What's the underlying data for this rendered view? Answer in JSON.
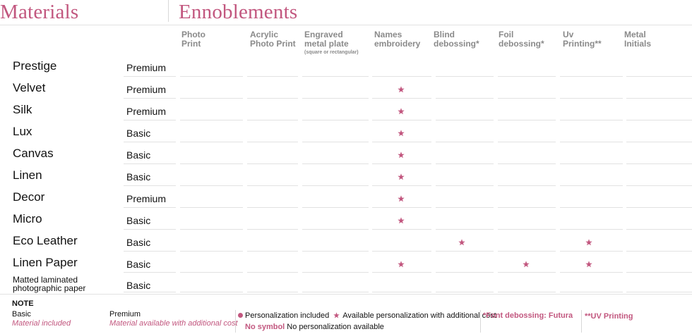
{
  "headings": {
    "materials": "Materials",
    "ennoblements": "Ennoblements"
  },
  "columns": [
    {
      "line1": "Photo",
      "line2": "Print",
      "sub": ""
    },
    {
      "line1": "Acrylic",
      "line2": "Photo Print",
      "sub": ""
    },
    {
      "line1": "Engraved",
      "line2": "metal plate",
      "sub": "(square or rectangular)"
    },
    {
      "line1": "Names",
      "line2": "embroidery",
      "sub": ""
    },
    {
      "line1": "Blind",
      "line2": "debossing*",
      "sub": ""
    },
    {
      "line1": "Foil",
      "line2": "debossing*",
      "sub": ""
    },
    {
      "line1": "Uv",
      "line2": "Printing**",
      "sub": ""
    },
    {
      "line1": "Metal",
      "line2": "Initials",
      "sub": ""
    }
  ],
  "materials": [
    {
      "name": "Prestige",
      "type": "Premium",
      "stars": []
    },
    {
      "name": "Velvet",
      "type": "Premium",
      "stars": [
        3
      ]
    },
    {
      "name": "Silk",
      "type": "Premium",
      "stars": [
        3
      ]
    },
    {
      "name": "Lux",
      "type": "Basic",
      "stars": [
        3
      ]
    },
    {
      "name": "Canvas",
      "type": "Basic",
      "stars": [
        3
      ]
    },
    {
      "name": "Linen",
      "type": "Basic",
      "stars": [
        3
      ]
    },
    {
      "name": "Decor",
      "type": "Premium",
      "stars": [
        3
      ]
    },
    {
      "name": "Micro",
      "type": "Basic",
      "stars": [
        3
      ]
    },
    {
      "name": "Eco Leather",
      "type": "Basic",
      "stars": [
        4,
        6
      ]
    },
    {
      "name": "Linen Paper",
      "type": "Basic",
      "stars": [
        3,
        5,
        6
      ]
    },
    {
      "name": "Matted laminated photographic paper",
      "type": "Basic",
      "stars": []
    }
  ],
  "note": {
    "title": "NOTE",
    "basic_label": "Basic",
    "basic_desc": "Material included",
    "premium_label": "Premium",
    "premium_desc": "Material available with additional cost",
    "included_text": "Personalization included",
    "additional_text": "Available personalization with additional cost",
    "no_symbol_label": "No symbol",
    "no_symbol_text": "No personalization available",
    "font_note": "*Font debossing: Futura",
    "uv_note": "**UV Printing"
  },
  "colors": {
    "accent": "#c2577f",
    "rule": "#e2e2e2",
    "header_text": "#8a8a8a"
  },
  "icons": {
    "star": "star-icon",
    "dot": "dot-icon"
  }
}
